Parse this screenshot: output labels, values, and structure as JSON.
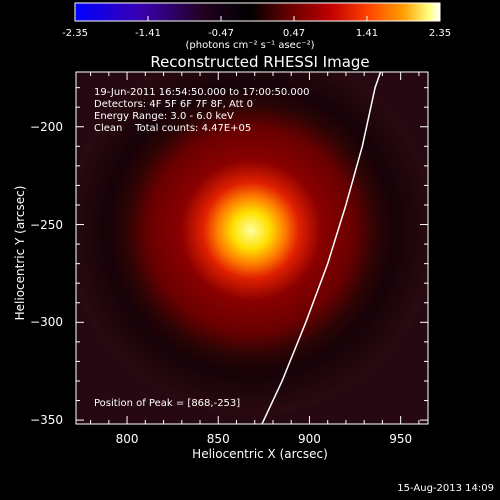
{
  "chart_data": {
    "type": "heatmap",
    "title": "Reconstructed RHESSI Image",
    "xlabel": "Heliocentric X (arcsec)",
    "ylabel": "Heliocentric Y (arcsec)",
    "xlim": [
      772,
      965
    ],
    "ylim": [
      -352,
      -172
    ],
    "x_ticks": [
      800,
      850,
      900,
      950
    ],
    "y_ticks": [
      -200,
      -250,
      -300,
      -350
    ],
    "colorbar": {
      "range": [
        -2.35,
        2.35
      ],
      "ticks": [
        "-2.35",
        "-1.41",
        "-0.47",
        "0.47",
        "1.41",
        "2.35"
      ],
      "unit_label": "(photons cm⁻² s⁻¹ asec⁻²)",
      "colormap": [
        "#0000ff",
        "#3a00aa",
        "#1a001a",
        "#000000",
        "#5a0000",
        "#b00000",
        "#ff3000",
        "#ff9000",
        "#ffe000",
        "#ffffff"
      ]
    },
    "info_lines": [
      "19-Jun-2011 16:54:50.000 to 17:00:50.000",
      "Detectors: 4F 5F 6F 7F 8F, Att 0",
      "Energy Range: 3.0 - 6.0 keV",
      "Clean    Total counts: 4.47E+05"
    ],
    "peak_text": "Position of Peak = [868,-253]",
    "peak": {
      "x": 868,
      "y": -253
    },
    "limb_curve": [
      [
        874,
        -352
      ],
      [
        885,
        -330
      ],
      [
        898,
        -300
      ],
      [
        910,
        -270
      ],
      [
        920,
        -240
      ],
      [
        929,
        -210
      ],
      [
        936,
        -180
      ],
      [
        939,
        -172
      ]
    ],
    "footer_date": "15-Aug-2013 14:09"
  }
}
